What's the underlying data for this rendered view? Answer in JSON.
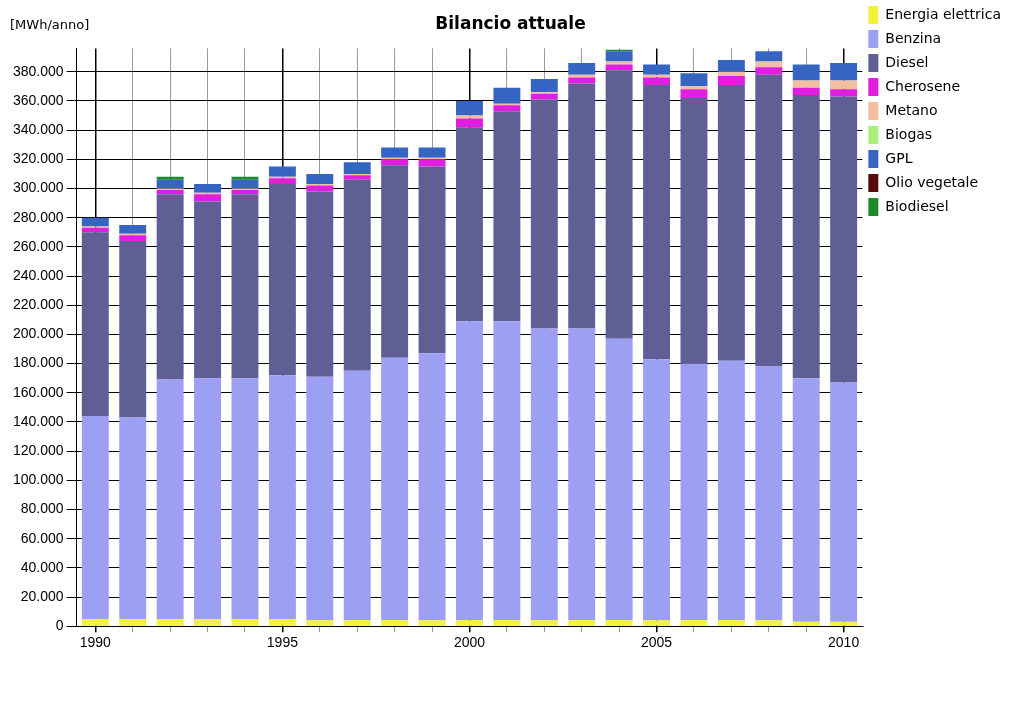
{
  "chart_data": {
    "type": "bar",
    "title": "Bilancio attuale",
    "ylabel": "[MWh/anno]",
    "categories": [
      "1990",
      null,
      null,
      null,
      null,
      "1995",
      null,
      null,
      null,
      null,
      "2000",
      null,
      null,
      null,
      null,
      "2005",
      null,
      null,
      null,
      null,
      "2010"
    ],
    "stacked": true,
    "grid": true,
    "legend": "right",
    "ylim": [
      0,
      396000
    ],
    "yticks": [
      {
        "value": 0,
        "label": "0"
      },
      {
        "value": 20000,
        "label": "20.000"
      },
      {
        "value": 40000,
        "label": "40.000"
      },
      {
        "value": 60000,
        "label": "60.000"
      },
      {
        "value": 80000,
        "label": "80.000"
      },
      {
        "value": 100000,
        "label": "100.000"
      },
      {
        "value": 120000,
        "label": "120.000"
      },
      {
        "value": 140000,
        "label": "140.000"
      },
      {
        "value": 160000,
        "label": "160.000"
      },
      {
        "value": 180000,
        "label": "180.000"
      },
      {
        "value": 200000,
        "label": "200.000"
      },
      {
        "value": 220000,
        "label": "220.000"
      },
      {
        "value": 240000,
        "label": "240.000"
      },
      {
        "value": 260000,
        "label": "260.000"
      },
      {
        "value": 280000,
        "label": "280.000"
      },
      {
        "value": 300000,
        "label": "300.000"
      },
      {
        "value": 320000,
        "label": "320.000"
      },
      {
        "value": 340000,
        "label": "340.000"
      },
      {
        "value": 360000,
        "label": "360.000"
      },
      {
        "value": 380000,
        "label": "380.000"
      }
    ],
    "series": [
      {
        "name": "Energia elettrica",
        "color": "#f2f23c",
        "values": [
          5000,
          5000,
          5000,
          5000,
          5000,
          5000,
          4000,
          4000,
          4000,
          4000,
          4000,
          4000,
          4000,
          4000,
          4000,
          4000,
          4000,
          4000,
          4000,
          3000,
          3000
        ]
      },
      {
        "name": "Benzina",
        "color": "#9d9ff2",
        "values": [
          139000,
          138000,
          164000,
          165000,
          165000,
          167000,
          167000,
          171000,
          180000,
          183000,
          205000,
          205000,
          200000,
          200000,
          193000,
          179000,
          176000,
          178000,
          174000,
          167000,
          164000
        ]
      },
      {
        "name": "Diesel",
        "color": "#5f5f96",
        "values": [
          126000,
          121000,
          127000,
          121000,
          126000,
          131000,
          127000,
          131000,
          132000,
          128000,
          133000,
          144000,
          157000,
          168000,
          184000,
          188000,
          182000,
          189000,
          200000,
          194000,
          196000
        ]
      },
      {
        "name": "Cherosene",
        "color": "#e01ee0",
        "values": [
          3000,
          4000,
          3000,
          5000,
          3000,
          4000,
          4000,
          3000,
          4000,
          5000,
          6000,
          4000,
          4000,
          4000,
          4000,
          5000,
          6000,
          6000,
          5000,
          5000,
          5000
        ]
      },
      {
        "name": "Metano",
        "color": "#f2c0a0",
        "values": [
          1000,
          1000,
          1000,
          1000,
          1000,
          1000,
          1000,
          1000,
          1000,
          1000,
          2000,
          1000,
          1000,
          2000,
          2000,
          2000,
          2000,
          3000,
          4000,
          5000,
          6000
        ]
      },
      {
        "name": "Biogas",
        "color": "#a8f07a",
        "values": [
          0,
          0,
          0,
          0,
          0,
          0,
          0,
          0,
          0,
          0,
          0,
          0,
          0,
          0,
          0,
          0,
          0,
          0,
          0,
          0,
          0
        ]
      },
      {
        "name": "GPL",
        "color": "#3565c0",
        "values": [
          6000,
          6000,
          6000,
          6000,
          6000,
          7000,
          7000,
          8000,
          7000,
          7000,
          10000,
          11000,
          9000,
          8000,
          7000,
          7000,
          9000,
          8000,
          7000,
          11000,
          12000
        ]
      },
      {
        "name": "Olio vegetale",
        "color": "#5a0a0a",
        "values": [
          0,
          0,
          0,
          0,
          0,
          0,
          0,
          0,
          0,
          0,
          0,
          0,
          0,
          0,
          0,
          0,
          0,
          0,
          0,
          0,
          0
        ]
      },
      {
        "name": "Biodiesel",
        "color": "#1e8a2e",
        "values": [
          0,
          0,
          2000,
          0,
          2000,
          0,
          0,
          0,
          0,
          0,
          0,
          0,
          0,
          0,
          1000,
          0,
          0,
          0,
          0,
          0,
          0
        ]
      }
    ]
  }
}
